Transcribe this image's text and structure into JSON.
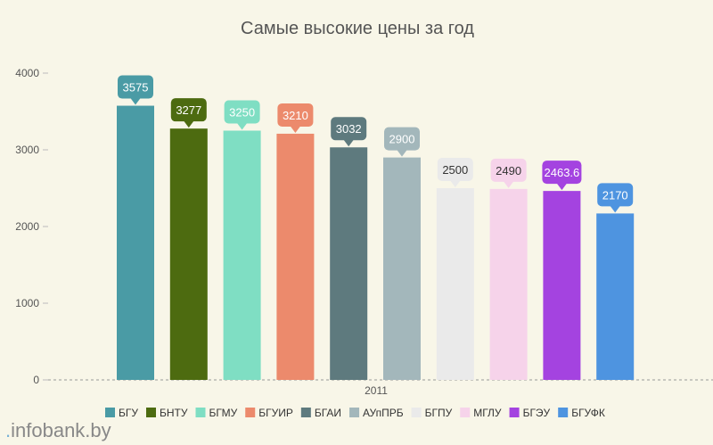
{
  "chart_data": {
    "type": "bar",
    "title": "Самые высокие цены за год",
    "xlabel": "",
    "ylabel": "",
    "x_category": "2011",
    "ylim": [
      0,
      4000
    ],
    "yticks": [
      0,
      1000,
      2000,
      3000,
      4000
    ],
    "grid": false,
    "legend_position": "bottom",
    "series": [
      {
        "name": "БГУ",
        "value": 3575,
        "label": "3575",
        "color": "#4a9ba5",
        "label_bg": "#4a9ba5",
        "label_color": "#ffffff"
      },
      {
        "name": "БНТУ",
        "value": 3277,
        "label": "3277",
        "color": "#4d6b10",
        "label_bg": "#4d6b10",
        "label_color": "#ffffff"
      },
      {
        "name": "БГМУ",
        "value": 3250,
        "label": "3250",
        "color": "#7fdec3",
        "label_bg": "#7fdec3",
        "label_color": "#ffffff"
      },
      {
        "name": "БГУИР",
        "value": 3210,
        "label": "3210",
        "color": "#ec8a6c",
        "label_bg": "#ec8a6c",
        "label_color": "#ffffff"
      },
      {
        "name": "БГАИ",
        "value": 3032,
        "label": "3032",
        "color": "#5e7a7e",
        "label_bg": "#5e7a7e",
        "label_color": "#ffffff"
      },
      {
        "name": "АУпПРБ",
        "value": 2900,
        "label": "2900",
        "color": "#a3b7bb",
        "label_bg": "#a3b7bb",
        "label_color": "#ffffff"
      },
      {
        "name": "БГПУ",
        "value": 2500,
        "label": "2500",
        "color": "#eaeaea",
        "label_bg": "#eaeaea",
        "label_color": "#333333"
      },
      {
        "name": "МГЛУ",
        "value": 2490,
        "label": "2490",
        "color": "#f6d3ea",
        "label_bg": "#f6d3ea",
        "label_color": "#333333"
      },
      {
        "name": "БГЭУ",
        "value": 2463.6,
        "label": "2463.6",
        "color": "#a443e0",
        "label_bg": "#a443e0",
        "label_color": "#ffffff"
      },
      {
        "name": "БГУФК",
        "value": 2170,
        "label": "2170",
        "color": "#4e94e0",
        "label_bg": "#4e94e0",
        "label_color": "#ffffff"
      }
    ]
  },
  "watermark": {
    "dot": ".",
    "text": "infobank.by"
  }
}
